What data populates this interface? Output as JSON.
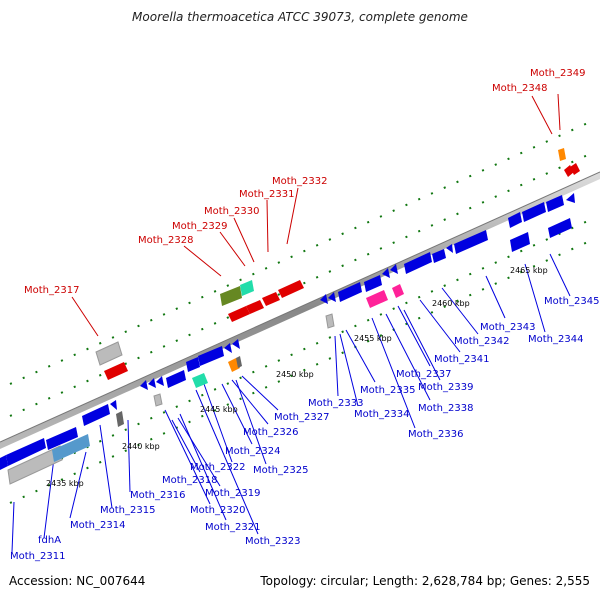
{
  "header": {
    "title": "Moorella thermoacetica ATCC 39073, complete genome"
  },
  "footer": {
    "accession": "Accession: NC_007644",
    "topology": "Topology: circular; Length: 2,628,784 bp; Genes: 2,555"
  },
  "ruler": [
    "2435 kbp",
    "2440 kbp",
    "2445 kbp",
    "2450 kbp",
    "2455 kbp",
    "2460 kbp",
    "2465 kbp"
  ],
  "colors": {
    "plus_strand_highlight": "#e00000",
    "minus_strand": "#0000e0",
    "backbone": "#999999",
    "tick": "#117711",
    "orange": "#ff8800",
    "olive": "#668822",
    "teal": "#22ddaa",
    "magenta": "#ff2299",
    "gray": "#bbbbbb",
    "steel": "#5599cc"
  },
  "labels": {
    "red": [
      "Moth_2349",
      "Moth_2348",
      "Moth_2332",
      "Moth_2331",
      "Moth_2330",
      "Moth_2329",
      "Moth_2328",
      "Moth_2317"
    ],
    "blue": [
      "Moth_2345",
      "Moth_2344",
      "Moth_2343",
      "Moth_2342",
      "Moth_2341",
      "Moth_2337",
      "Moth_2339",
      "Moth_2338",
      "Moth_2336",
      "Moth_2335",
      "Moth_2334",
      "Moth_2333",
      "Moth_2327",
      "Moth_2326",
      "Moth_2325",
      "Moth_2324",
      "Moth_2322",
      "Moth_2318",
      "Moth_2319",
      "Moth_2320",
      "Moth_2321",
      "Moth_2323",
      "Moth_2316",
      "Moth_2315",
      "Moth_2314",
      "fdhA",
      "Moth_2311"
    ]
  }
}
